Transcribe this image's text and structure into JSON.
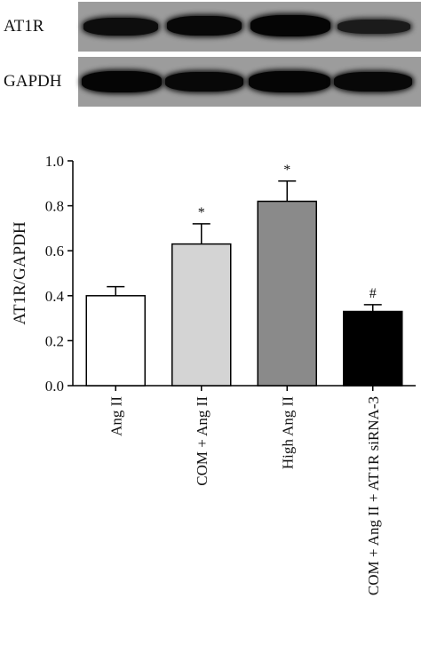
{
  "western_blot": {
    "rows": [
      {
        "label": "AT1R",
        "band_intensity": [
          0.85,
          0.95,
          1.0,
          0.6
        ]
      },
      {
        "label": "GAPDH",
        "band_intensity": [
          1.0,
          0.95,
          1.0,
          0.95
        ]
      }
    ]
  },
  "chart_data": {
    "type": "bar",
    "categories": [
      "Ang II",
      "COM + Ang II",
      "High Ang II",
      "COM + Ang II + AT1R siRNA-3"
    ],
    "values": [
      0.4,
      0.63,
      0.82,
      0.33
    ],
    "error": [
      0.04,
      0.09,
      0.09,
      0.03
    ],
    "annotations": [
      "",
      "*",
      "*",
      "#"
    ],
    "colors": [
      "#ffffff",
      "#d4d4d4",
      "#8a8a8a",
      "#000000"
    ],
    "ylabel": "AT1R/GAPDH",
    "xlabel": "",
    "ylim": [
      0,
      1.0
    ],
    "yticks": [
      "0.0",
      "0.2",
      "0.4",
      "0.6",
      "0.8",
      "1.0"
    ],
    "grid": false
  }
}
